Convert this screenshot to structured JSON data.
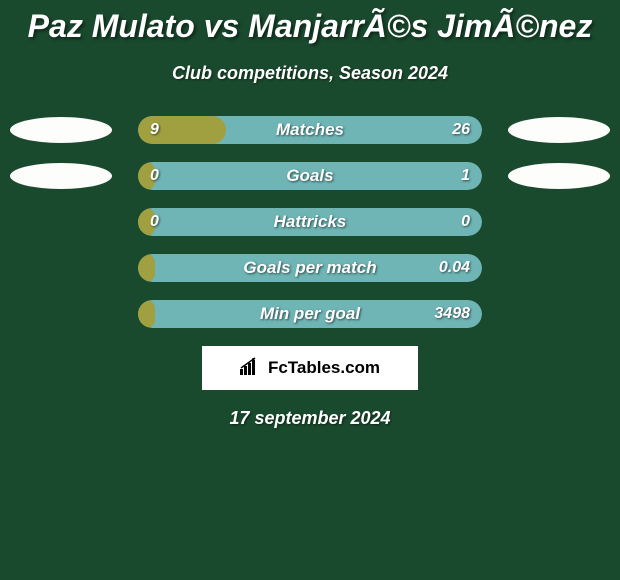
{
  "background_color": "#1a4a2e",
  "title": "Paz Mulato vs ManjarrÃ©s JimÃ©nez",
  "title_fontsize": 32,
  "subtitle": "Club competitions, Season 2024",
  "subtitle_fontsize": 18,
  "date": "17 september 2024",
  "attribution": "FcTables.com",
  "ellipse_color": "#fdfdfb",
  "stats": [
    {
      "label": "Matches",
      "left_value": "9",
      "right_value": "26",
      "left_raw": 9,
      "right_raw": 26,
      "fill_color": "#a0a040",
      "bg_color": "#6fb5b5",
      "fill_pct": 25.7,
      "show_ellipses": true
    },
    {
      "label": "Goals",
      "left_value": "0",
      "right_value": "1",
      "left_raw": 0,
      "right_raw": 1,
      "fill_color": "#a0a040",
      "bg_color": "#6fb5b5",
      "fill_pct": 5,
      "show_ellipses": true
    },
    {
      "label": "Hattricks",
      "left_value": "0",
      "right_value": "0",
      "left_raw": 0,
      "right_raw": 0,
      "fill_color": "#a0a040",
      "bg_color": "#6fb5b5",
      "fill_pct": 5,
      "show_ellipses": false
    },
    {
      "label": "Goals per match",
      "left_value": "",
      "right_value": "0.04",
      "left_raw": 0,
      "right_raw": 0.04,
      "fill_color": "#a0a040",
      "bg_color": "#6fb5b5",
      "fill_pct": 5,
      "show_ellipses": false
    },
    {
      "label": "Min per goal",
      "left_value": "",
      "right_value": "3498",
      "left_raw": 0,
      "right_raw": 3498,
      "fill_color": "#a0a040",
      "bg_color": "#6fb5b5",
      "fill_pct": 5,
      "show_ellipses": false
    }
  ]
}
